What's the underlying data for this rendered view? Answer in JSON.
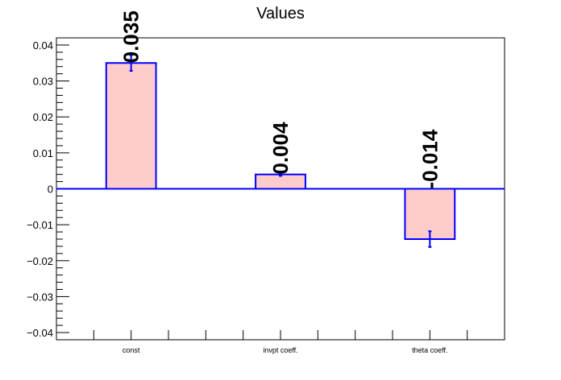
{
  "chart_data": {
    "type": "bar",
    "title": "Values",
    "xlabel": "",
    "ylabel": "",
    "categories": [
      "const",
      "invpt coeff.",
      "theta coeff."
    ],
    "values": [
      0.035,
      0.004,
      -0.014
    ],
    "errors": [
      0.0022,
      0.0004,
      0.0022
    ],
    "data_labels": [
      "0.035",
      "0.004",
      "-0.014"
    ],
    "ylim": [
      -0.042,
      0.042
    ],
    "yticks": [
      0.04,
      0.03,
      0.02,
      0.01,
      0,
      -0.01,
      -0.02,
      -0.03,
      -0.04
    ],
    "ytick_labels": [
      "0.04",
      "0.03",
      "0.02",
      "0.01",
      "0",
      "−0.01",
      "−0.02",
      "−0.03",
      "−0.04"
    ],
    "grid": false,
    "bar_fill": "#ffcccc",
    "bar_edge": "#0000ff",
    "zero_line_color": "#0000ff",
    "error_color": "#0000ff"
  }
}
